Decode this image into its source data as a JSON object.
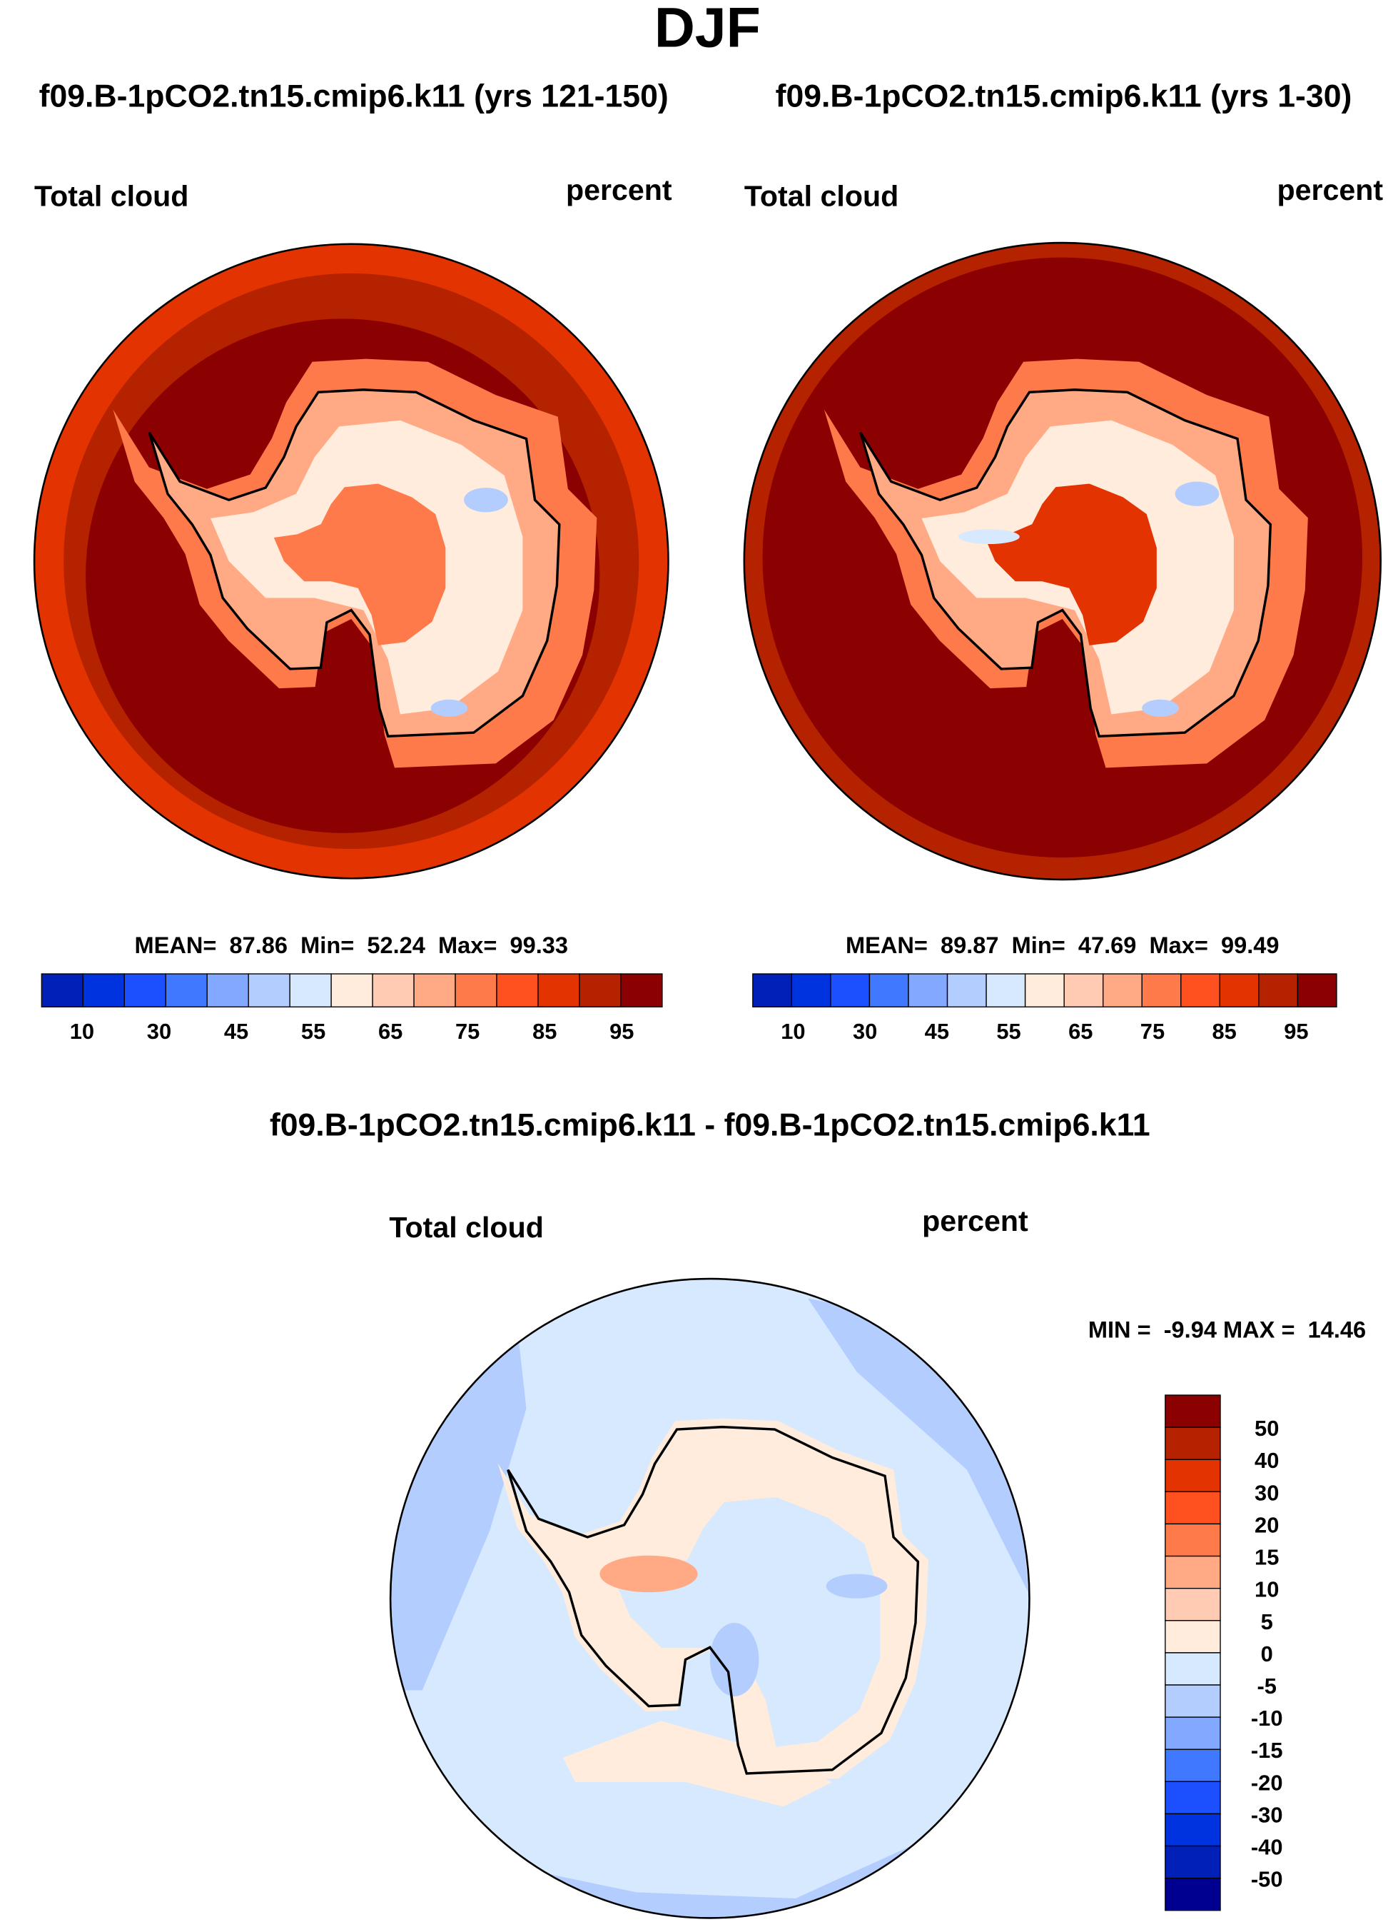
{
  "title": "DJF",
  "panels": [
    {
      "case": "f09.B-1pCO2.tn15.cmip6.k11 (yrs 121-150)",
      "variable": "Total cloud",
      "units": "percent",
      "stats": "MEAN=  87.86  Min=  52.24  Max=  99.33"
    },
    {
      "case": "f09.B-1pCO2.tn15.cmip6.k11 (yrs 1-30)",
      "variable": "Total cloud",
      "units": "percent",
      "stats": "MEAN=  89.87  Min=  47.69  Max=  99.49"
    }
  ],
  "diff": {
    "case": "f09.B-1pCO2.tn15.cmip6.k11 - f09.B-1pCO2.tn15.cmip6.k11",
    "variable": "Total cloud",
    "units": "percent",
    "stats": "MIN =  -9.94 MAX =  14.46"
  },
  "colorbar": {
    "labels": [
      "10",
      "30",
      "45",
      "55",
      "65",
      "75",
      "85",
      "95"
    ],
    "colors": [
      "#000090",
      "#0020b8",
      "#0033e0",
      "#1c50ff",
      "#4078ff",
      "#82a8ff",
      "#b4cdff",
      "#d6e9ff",
      "#ffecdc",
      "#ffcbb2",
      "#ffaa84",
      "#ff7a4a",
      "#ff5020",
      "#e33300",
      "#b52200",
      "#8b0000"
    ]
  },
  "diff_colorbar": {
    "labels": [
      "50",
      "40",
      "30",
      "20",
      "15",
      "10",
      "5",
      "0",
      "-5",
      "-10",
      "-15",
      "-20",
      "-30",
      "-40",
      "-50"
    ]
  }
}
